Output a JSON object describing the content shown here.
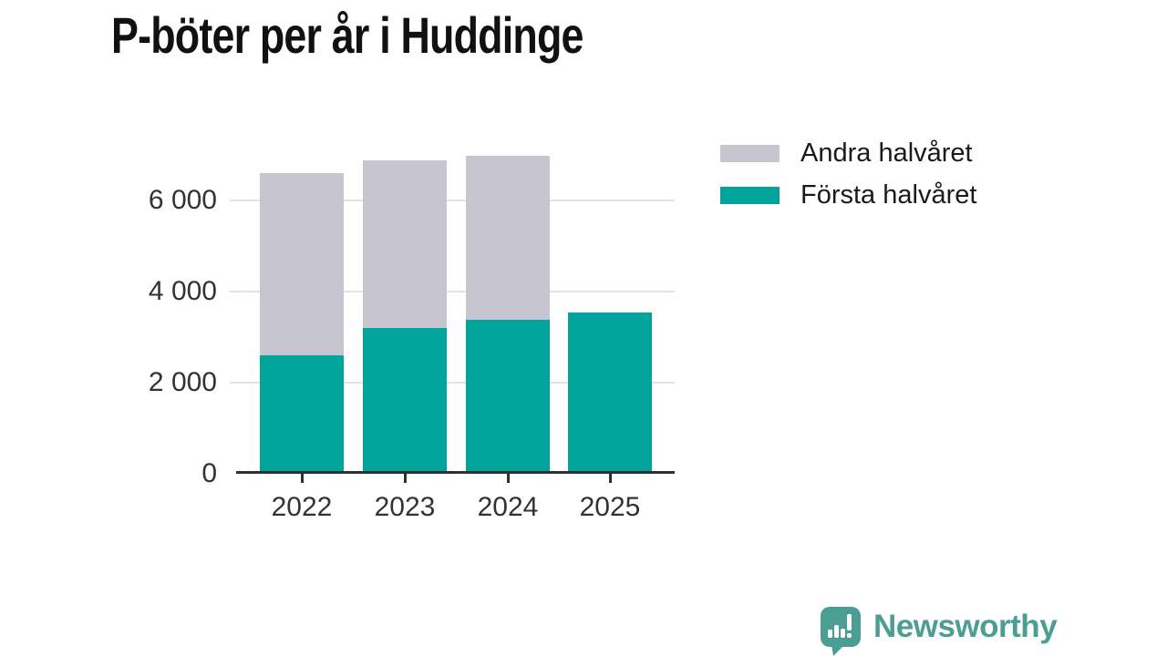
{
  "title": "P-böter per år i Huddinge",
  "legend": {
    "items": [
      {
        "label": "Andra halvåret",
        "color": "#c7c5cf"
      },
      {
        "label": "Första halvåret",
        "color": "#00a49a"
      }
    ]
  },
  "chart_data": {
    "type": "bar",
    "stacked": true,
    "title": "P-böter per år i Huddinge",
    "categories": [
      "2022",
      "2023",
      "2024",
      "2025"
    ],
    "series": [
      {
        "name": "Första halvåret",
        "color": "#00a49a",
        "values": [
          2600,
          3200,
          3390,
          3550
        ]
      },
      {
        "name": "Andra halvåret",
        "color": "#c7c5cf",
        "values": [
          4000,
          3690,
          3590,
          0
        ]
      }
    ],
    "totals": [
      6600,
      6890,
      6980,
      3550
    ],
    "xlabel": "",
    "ylabel": "",
    "ylim": [
      0,
      7200
    ],
    "yticks": [
      {
        "value": 0,
        "label": "0"
      },
      {
        "value": 2000,
        "label": "2 000"
      },
      {
        "value": 4000,
        "label": "4 000"
      },
      {
        "value": 6000,
        "label": "6 000"
      }
    ],
    "grid": true,
    "legend_position": "top-right"
  },
  "colors": {
    "first_half": "#00a49a",
    "second_half": "#c7c5cf",
    "gridline": "#e3e3e3",
    "axis": "#303030",
    "tick_text": "#333333",
    "title_text": "#111111",
    "brand": "#4a9e94"
  },
  "branding": {
    "name": "Newsworthy",
    "icon": "newsworthy-speech-bubble-bar-chart-icon"
  }
}
